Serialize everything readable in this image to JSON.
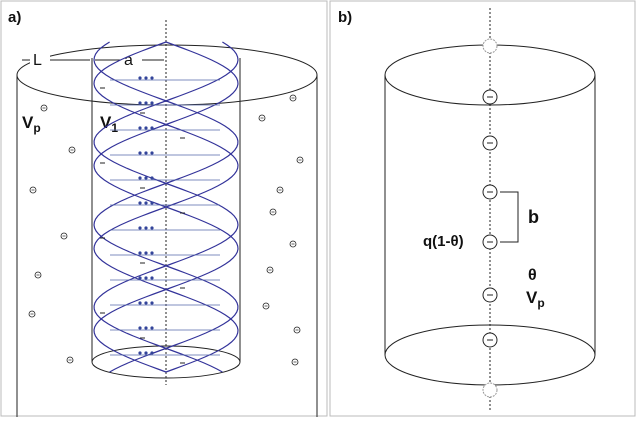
{
  "panel_a": {
    "label": "a)",
    "dimensions": [
      "L",
      "a"
    ],
    "volumes": [
      {
        "main": "V",
        "sub": "p"
      },
      {
        "main": "V",
        "sub": "1"
      }
    ]
  },
  "panel_b": {
    "label": "b)",
    "spacing": "b",
    "charge": "q(1-θ)",
    "fraction": "θ",
    "volume": {
      "main": "V",
      "sub": "p"
    }
  }
}
